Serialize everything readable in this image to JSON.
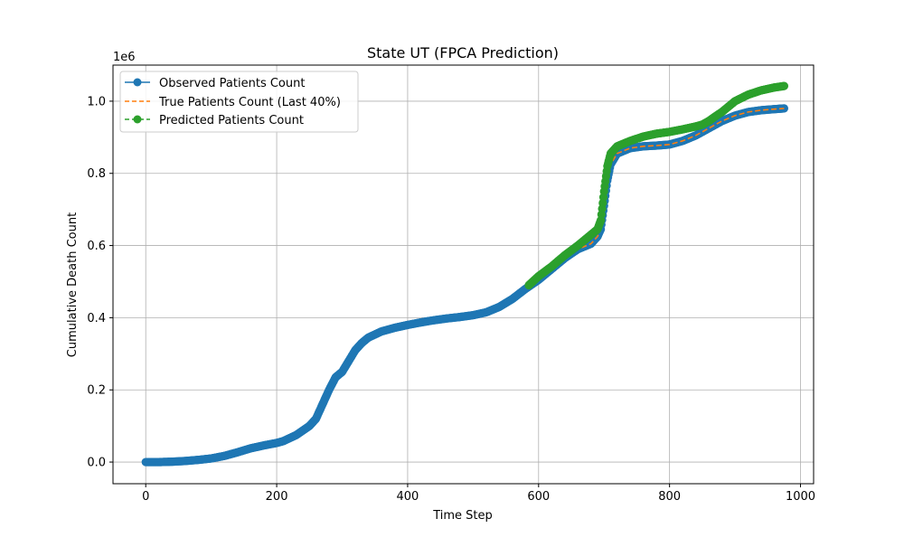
{
  "chart_data": {
    "type": "line",
    "title": "State UT (FPCA Prediction)",
    "xlabel": "Time Step",
    "ylabel": "Cumulative Death Count",
    "y_offset_label": "1e6",
    "xlim": [
      -50,
      1020
    ],
    "ylim": [
      -0.06,
      1.1
    ],
    "xticks": [
      0,
      200,
      400,
      600,
      800,
      1000
    ],
    "xtick_labels": [
      "0",
      "200",
      "400",
      "600",
      "800",
      "1000"
    ],
    "yticks": [
      0.0,
      0.2,
      0.4,
      0.6,
      0.8,
      1.0
    ],
    "ytick_labels": [
      "0.0",
      "0.2",
      "0.4",
      "0.6",
      "0.8",
      "1.0"
    ],
    "grid": true,
    "legend_position": "top-left",
    "series": [
      {
        "name": "Observed Patients Count",
        "color": "#1f77b4",
        "style": "solid",
        "marker": "circle",
        "x": [
          0,
          20,
          40,
          60,
          80,
          100,
          120,
          140,
          160,
          180,
          200,
          210,
          230,
          250,
          260,
          270,
          280,
          290,
          300,
          310,
          320,
          330,
          340,
          360,
          380,
          400,
          420,
          440,
          460,
          480,
          500,
          520,
          540,
          560,
          580,
          600,
          620,
          640,
          660,
          680,
          690,
          695,
          700,
          705,
          710,
          720,
          740,
          760,
          780,
          800,
          820,
          840,
          860,
          880,
          900,
          920,
          940,
          960,
          975
        ],
        "y": [
          0.0,
          0.0,
          0.001,
          0.003,
          0.006,
          0.01,
          0.017,
          0.027,
          0.038,
          0.046,
          0.053,
          0.058,
          0.075,
          0.1,
          0.12,
          0.16,
          0.2,
          0.235,
          0.25,
          0.28,
          0.31,
          0.33,
          0.345,
          0.362,
          0.372,
          0.38,
          0.387,
          0.393,
          0.398,
          0.402,
          0.407,
          0.415,
          0.43,
          0.452,
          0.48,
          0.505,
          0.535,
          0.565,
          0.59,
          0.605,
          0.625,
          0.645,
          0.71,
          0.78,
          0.825,
          0.855,
          0.87,
          0.875,
          0.877,
          0.88,
          0.89,
          0.905,
          0.925,
          0.945,
          0.96,
          0.97,
          0.975,
          0.978,
          0.98
        ]
      },
      {
        "name": "True Patients Count (Last 40%)",
        "color": "#ff7f0e",
        "style": "dashed",
        "marker": "none",
        "x": [
          585,
          600,
          620,
          640,
          660,
          680,
          690,
          695,
          700,
          705,
          710,
          720,
          740,
          760,
          780,
          800,
          820,
          840,
          860,
          880,
          900,
          920,
          940,
          960,
          975
        ],
        "y": [
          0.49,
          0.505,
          0.535,
          0.565,
          0.59,
          0.605,
          0.625,
          0.645,
          0.71,
          0.78,
          0.825,
          0.855,
          0.87,
          0.875,
          0.877,
          0.88,
          0.89,
          0.905,
          0.925,
          0.945,
          0.96,
          0.97,
          0.975,
          0.978,
          0.98
        ]
      },
      {
        "name": "Predicted Patients Count",
        "color": "#2ca02c",
        "style": "dashed",
        "marker": "circle",
        "x": [
          585,
          600,
          620,
          640,
          660,
          680,
          690,
          695,
          700,
          705,
          710,
          720,
          740,
          760,
          780,
          800,
          820,
          840,
          850,
          860,
          870,
          880,
          890,
          900,
          920,
          940,
          960,
          975
        ],
        "y": [
          0.49,
          0.515,
          0.542,
          0.573,
          0.6,
          0.63,
          0.645,
          0.67,
          0.75,
          0.82,
          0.855,
          0.875,
          0.89,
          0.902,
          0.91,
          0.915,
          0.922,
          0.93,
          0.935,
          0.945,
          0.958,
          0.97,
          0.985,
          1.0,
          1.018,
          1.03,
          1.038,
          1.042
        ]
      }
    ]
  }
}
